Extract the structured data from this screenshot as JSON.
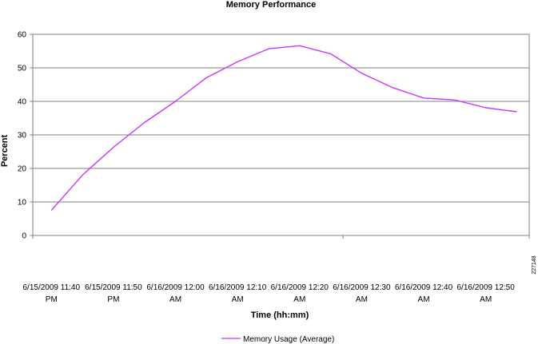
{
  "chart_data": {
    "type": "line",
    "title": "Memory Performance",
    "xlabel": "Time (hh:mm)",
    "ylabel": "Percent",
    "ylim": [
      0,
      60
    ],
    "yticks": [
      0,
      10,
      20,
      30,
      40,
      50,
      60
    ],
    "grid": true,
    "legend_position": "bottom",
    "x_tick_labels": [
      [
        "6/15/2009 11:40",
        "PM"
      ],
      [
        "6/15/2009  11:50",
        "PM"
      ],
      [
        "6/16/2009 12:00",
        "AM"
      ],
      [
        "6/16/2009 12:10",
        "AM"
      ],
      [
        "6/16/2009 12:20",
        "AM"
      ],
      [
        "6/16/2009 12:30",
        "AM"
      ],
      [
        "6/16/2009 12:40",
        "AM"
      ],
      [
        "6/16/2009 12:50",
        "AM"
      ]
    ],
    "series": [
      {
        "name": "Memory Usage (Average)",
        "color": "#cc33ff",
        "values": [
          7.5,
          18,
          26.3,
          33.7,
          40,
          47.1,
          51.8,
          55.7,
          56.6,
          54.2,
          48.4,
          44.1,
          41,
          40.4,
          38.1,
          36.9
        ]
      }
    ],
    "side_label": "227148"
  }
}
